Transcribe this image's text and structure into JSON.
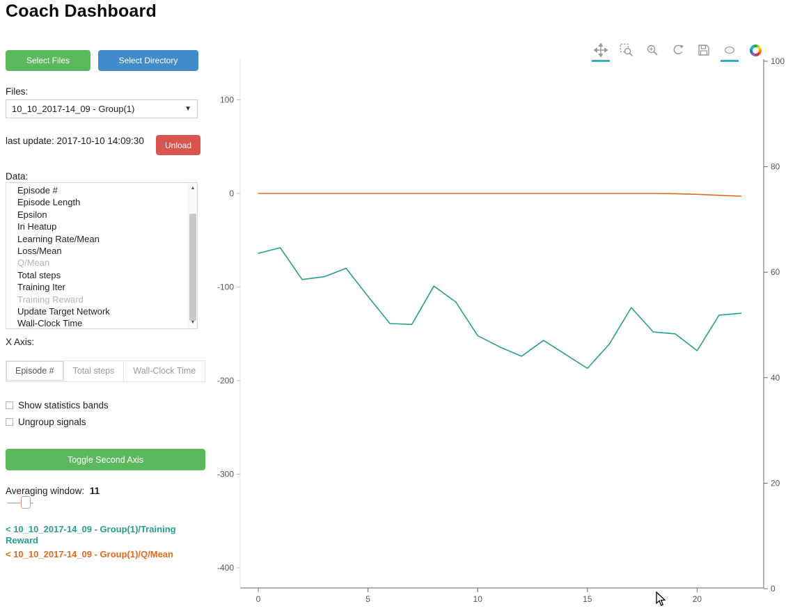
{
  "page": {
    "title": "Coach Dashboard"
  },
  "actions": {
    "select_files": "Select Files",
    "select_directory": "Select Directory",
    "unload": "Unload",
    "toggle_second_axis": "Toggle Second Axis"
  },
  "files": {
    "label": "Files:",
    "selected": "10_10_2017-14_09 - Group(1)"
  },
  "last_update": {
    "text": "last update: 2017-10-10 14:09:30"
  },
  "data_list": {
    "label": "Data:",
    "items": [
      {
        "label": "Episode #",
        "muted": false
      },
      {
        "label": "Episode Length",
        "muted": false
      },
      {
        "label": "Epsilon",
        "muted": false
      },
      {
        "label": "In Heatup",
        "muted": false
      },
      {
        "label": "Learning Rate/Mean",
        "muted": false
      },
      {
        "label": "Loss/Mean",
        "muted": false
      },
      {
        "label": "Q/Mean",
        "muted": true
      },
      {
        "label": "Total steps",
        "muted": false
      },
      {
        "label": "Training Iter",
        "muted": false
      },
      {
        "label": "Training Reward",
        "muted": true
      },
      {
        "label": "Update Target Network",
        "muted": false
      },
      {
        "label": "Wall-Clock Time",
        "muted": false
      }
    ]
  },
  "x_axis_section": {
    "label": "X Axis:",
    "tabs": [
      {
        "label": "Episode #",
        "active": true
      },
      {
        "label": "Total steps",
        "active": false
      },
      {
        "label": "Wall-Clock Time",
        "active": false
      }
    ]
  },
  "options": [
    {
      "label": "Show statistics bands",
      "checked": false
    },
    {
      "label": "Ungroup signals",
      "checked": false
    }
  ],
  "averaging": {
    "label": "Averaging window:",
    "value": "11"
  },
  "legend": [
    {
      "label": "< 10_10_2017-14_09 - Group(1)/Training Reward",
      "color": "#2a9d8a"
    },
    {
      "label": "< 10_10_2017-14_09 - Group(1)/Q/Mean",
      "color": "#e2691e"
    }
  ],
  "plot_toolbar": {
    "tools": [
      {
        "name": "pan",
        "active": true
      },
      {
        "name": "box-zoom",
        "active": false
      },
      {
        "name": "wheel-zoom",
        "active": false
      },
      {
        "name": "reset",
        "active": false
      },
      {
        "name": "save",
        "active": false
      },
      {
        "name": "hover",
        "active": true
      },
      {
        "name": "bokeh-logo",
        "active": false
      }
    ]
  },
  "colors": {
    "button_green": "#5cb85c",
    "button_blue": "#428bca",
    "button_red": "#d9534f",
    "series_teal": "#2a9d8a",
    "series_orange": "#e2691e",
    "active_tool_underline": "#35aec0"
  },
  "chart_data": {
    "type": "line",
    "title": "",
    "xlabel": "",
    "ylabel": "",
    "grid": false,
    "x": [
      0,
      1,
      2,
      3,
      4,
      5,
      6,
      7,
      8,
      9,
      10,
      11,
      12,
      13,
      14,
      15,
      16,
      17,
      18,
      19,
      20,
      21,
      22
    ],
    "series": [
      {
        "name": "Training Reward",
        "color": "#2a9d8a",
        "axis": "left",
        "values": [
          -64,
          -58,
          -92,
          -89,
          -80,
          -110,
          -139,
          -140,
          -99,
          -116,
          -152,
          -164,
          -174,
          -157,
          -172,
          -187,
          -161,
          -122,
          -148,
          -150,
          -168,
          -130,
          -128
        ]
      },
      {
        "name": "Q/Mean",
        "color": "#e2691e",
        "axis": "left",
        "values": [
          0,
          0,
          0,
          0,
          0,
          0,
          0,
          0,
          0,
          0,
          0,
          0,
          0,
          0,
          0,
          0,
          0,
          0,
          0,
          -0.3,
          -1,
          -2,
          -3
        ]
      }
    ],
    "left_axis": {
      "ticks": [
        100,
        0,
        -100,
        -200,
        -300,
        -400
      ],
      "range": [
        -422,
        144
      ]
    },
    "right_axis": {
      "ticks": [
        100,
        80,
        60,
        40,
        20,
        0
      ],
      "range": [
        0,
        100
      ]
    },
    "x_axis": {
      "ticks": [
        0,
        5,
        10,
        15,
        20
      ],
      "range": [
        -0.8,
        23
      ]
    }
  }
}
